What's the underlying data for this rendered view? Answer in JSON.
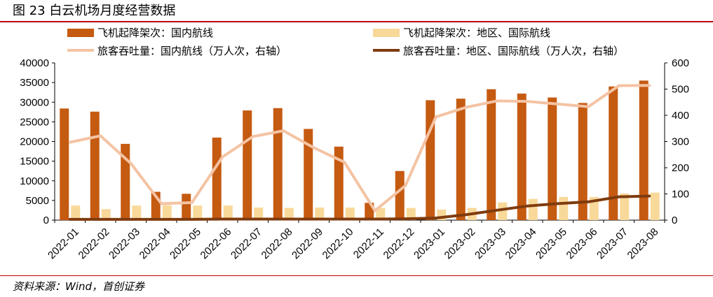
{
  "figure_title": "图 23  白云机场月度经营数据",
  "source": "资料来源：Wind，首创证券",
  "colors": {
    "bar_domestic": "#c55a11",
    "bar_international": "#f8d99a",
    "line_domestic": "#f4c3a3",
    "line_international": "#7f3b0e",
    "title_rule": "#c00000"
  },
  "chart_data": {
    "type": "bar",
    "categories": [
      "2022-01",
      "2022-02",
      "2022-03",
      "2022-04",
      "2022-05",
      "2022-06",
      "2022-07",
      "2022-08",
      "2022-09",
      "2022-10",
      "2022-11",
      "2022-12",
      "2023-01",
      "2023-02",
      "2023-03",
      "2023-04",
      "2023-05",
      "2023-06",
      "2023-07",
      "2023-08"
    ],
    "y_left": {
      "min": 0,
      "max": 40000,
      "ticks": [
        0,
        5000,
        10000,
        15000,
        20000,
        25000,
        30000,
        35000,
        40000
      ]
    },
    "y_right": {
      "min": 0,
      "max": 600,
      "ticks": [
        0,
        100,
        200,
        300,
        400,
        500,
        600
      ]
    },
    "grid": false,
    "legend_position": "top",
    "series": [
      {
        "name": "飞机起降架次：国内航线",
        "type": "bar",
        "axis": "left",
        "values": [
          28400,
          27600,
          19400,
          7200,
          6700,
          21000,
          27900,
          28500,
          23200,
          18700,
          4400,
          12500,
          30500,
          30900,
          33300,
          32200,
          31200,
          29800,
          34000,
          35500
        ]
      },
      {
        "name": "飞机起降架次：地区、国际航线",
        "type": "bar",
        "axis": "left",
        "values": [
          3700,
          2800,
          3700,
          3800,
          3700,
          3700,
          3200,
          3100,
          3200,
          3200,
          3100,
          3100,
          2700,
          3100,
          4500,
          5400,
          5900,
          5900,
          6800,
          7000
        ]
      },
      {
        "name": "旅客吞吐量：国内航线（万人次，右轴）",
        "type": "line",
        "axis": "right",
        "values": [
          297,
          322,
          216,
          63,
          67,
          241,
          319,
          341,
          276,
          221,
          36,
          132,
          394,
          431,
          455,
          453,
          443,
          433,
          513,
          514
        ]
      },
      {
        "name": "旅客吞吐量：地区、国际航线（万人次，右轴）",
        "type": "line",
        "axis": "right",
        "values": [
          3,
          3,
          3,
          3,
          3,
          4,
          4,
          4,
          4,
          4,
          4,
          5,
          8,
          21,
          38,
          54,
          63,
          70,
          89,
          92
        ]
      }
    ]
  }
}
